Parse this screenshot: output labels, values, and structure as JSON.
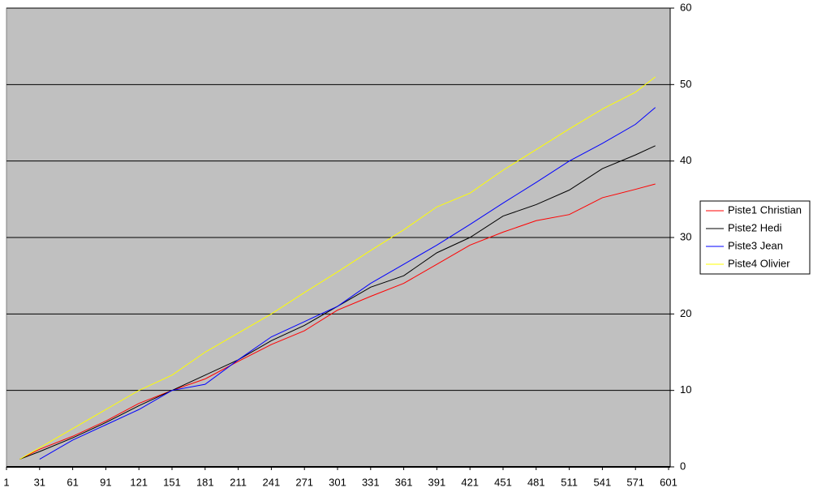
{
  "chart_data": {
    "type": "line",
    "x": [
      13,
      31,
      61,
      91,
      121,
      151,
      181,
      211,
      241,
      271,
      301,
      331,
      361,
      391,
      421,
      451,
      481,
      511,
      541,
      571,
      589
    ],
    "series": [
      {
        "name": "Piste1 Christian",
        "color": "#ff0000",
        "values": [
          1,
          2.3,
          4,
          6,
          8.3,
          10,
          11.5,
          13.8,
          16,
          17.8,
          20.5,
          22.3,
          24,
          26.5,
          29,
          30.7,
          32.2,
          33,
          35.2,
          36.3,
          37
        ]
      },
      {
        "name": "Piste2 Hedi",
        "color": "#000000",
        "values": [
          1,
          2,
          3.8,
          5.8,
          8,
          10,
          12,
          14,
          16.5,
          18.5,
          21,
          23.5,
          25,
          28,
          30,
          32.8,
          34.3,
          36.2,
          39,
          40.8,
          42
        ]
      },
      {
        "name": "Piste3 Jean",
        "color": "#0000ff",
        "values": [
          null,
          1,
          3.5,
          5.5,
          7.5,
          10,
          10.8,
          14,
          17,
          19,
          21,
          24,
          26.5,
          29,
          31.7,
          34.5,
          37.2,
          40,
          42.3,
          44.8,
          47
        ]
      },
      {
        "name": "Piste4 Olivier",
        "color": "#ffff00",
        "values": [
          1,
          2.5,
          5,
          7.5,
          10,
          12,
          15,
          17.5,
          20,
          22.8,
          25.5,
          28.3,
          31,
          34,
          35.8,
          38.8,
          41.5,
          44.2,
          46.8,
          49,
          51
        ]
      }
    ],
    "xlim": [
      1,
      601
    ],
    "xticks": [
      1,
      31,
      61,
      91,
      121,
      151,
      181,
      211,
      241,
      271,
      301,
      331,
      361,
      391,
      421,
      451,
      481,
      511,
      541,
      571,
      601
    ],
    "ylim": [
      0,
      60
    ],
    "yticks": [
      0,
      10,
      20,
      30,
      40,
      50,
      60
    ],
    "grid": true,
    "legend": "right"
  }
}
